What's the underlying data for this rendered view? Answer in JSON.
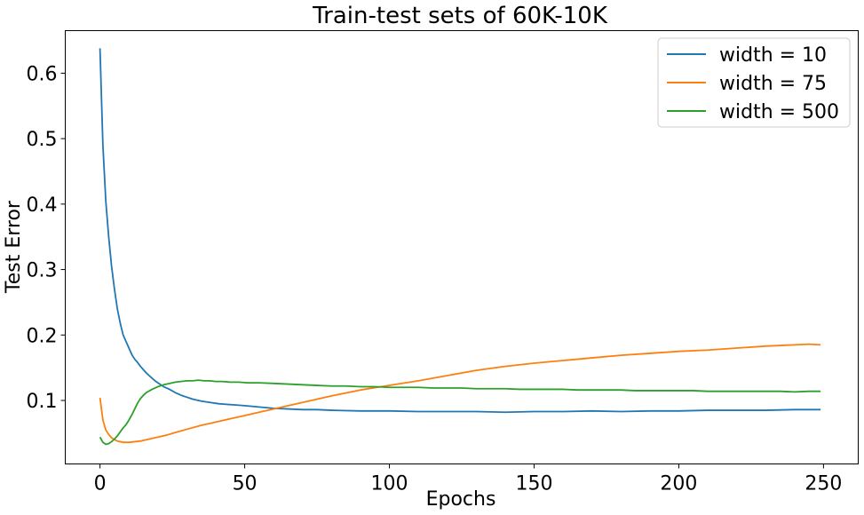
{
  "chart_data": {
    "type": "line",
    "title": "Train-test sets of 60K-10K",
    "xlabel": "Epochs",
    "ylabel": "Test Error",
    "xlim": [
      -12,
      262
    ],
    "ylim": [
      0.003,
      0.665
    ],
    "x_ticks": [
      0,
      50,
      100,
      150,
      200,
      250
    ],
    "y_ticks": [
      0.1,
      0.2,
      0.3,
      0.4,
      0.5,
      0.6
    ],
    "grid": false,
    "legend_position": "top-right",
    "series": [
      {
        "name": "width = 10",
        "color": "#1f77b4",
        "x": [
          0,
          1,
          2,
          3,
          4,
          5,
          6,
          7,
          8,
          9,
          10,
          11,
          12,
          13,
          14,
          15,
          16,
          17,
          18,
          19,
          20,
          22,
          24,
          26,
          28,
          30,
          32,
          35,
          38,
          41,
          44,
          47,
          50,
          55,
          60,
          65,
          70,
          75,
          80,
          90,
          100,
          110,
          120,
          130,
          140,
          150,
          160,
          170,
          180,
          190,
          200,
          210,
          220,
          230,
          240,
          249
        ],
        "y": [
          0.638,
          0.49,
          0.405,
          0.35,
          0.305,
          0.27,
          0.24,
          0.218,
          0.2,
          0.19,
          0.18,
          0.17,
          0.163,
          0.158,
          0.152,
          0.147,
          0.142,
          0.138,
          0.134,
          0.13,
          0.127,
          0.121,
          0.117,
          0.112,
          0.108,
          0.105,
          0.102,
          0.099,
          0.097,
          0.095,
          0.094,
          0.093,
          0.092,
          0.09,
          0.088,
          0.087,
          0.086,
          0.086,
          0.085,
          0.084,
          0.084,
          0.083,
          0.083,
          0.083,
          0.082,
          0.083,
          0.083,
          0.084,
          0.083,
          0.084,
          0.084,
          0.085,
          0.085,
          0.085,
          0.086,
          0.086
        ]
      },
      {
        "name": "width = 75",
        "color": "#ff7f0e",
        "x": [
          0,
          1,
          2,
          3,
          4,
          5,
          6,
          7,
          8,
          9,
          10,
          12,
          14,
          16,
          18,
          20,
          23,
          26,
          30,
          35,
          40,
          45,
          50,
          55,
          60,
          65,
          70,
          80,
          90,
          100,
          110,
          120,
          130,
          140,
          150,
          160,
          170,
          180,
          190,
          200,
          210,
          220,
          230,
          240,
          245,
          249
        ],
        "y": [
          0.104,
          0.07,
          0.055,
          0.048,
          0.043,
          0.04,
          0.038,
          0.037,
          0.036,
          0.036,
          0.036,
          0.037,
          0.038,
          0.04,
          0.042,
          0.044,
          0.047,
          0.051,
          0.056,
          0.062,
          0.067,
          0.072,
          0.077,
          0.082,
          0.087,
          0.092,
          0.097,
          0.107,
          0.116,
          0.123,
          0.13,
          0.138,
          0.146,
          0.152,
          0.157,
          0.161,
          0.165,
          0.169,
          0.172,
          0.175,
          0.177,
          0.18,
          0.183,
          0.185,
          0.186,
          0.185
        ]
      },
      {
        "name": "width = 500",
        "color": "#2ca02c",
        "x": [
          0,
          1,
          2,
          3,
          4,
          5,
          6,
          7,
          8,
          9,
          10,
          11,
          12,
          13,
          14,
          15,
          16,
          18,
          20,
          22,
          24,
          26,
          28,
          30,
          32,
          34,
          36,
          38,
          40,
          42,
          45,
          48,
          51,
          55,
          60,
          65,
          70,
          75,
          80,
          85,
          90,
          95,
          100,
          105,
          110,
          115,
          120,
          125,
          130,
          135,
          140,
          145,
          150,
          155,
          160,
          165,
          170,
          175,
          180,
          185,
          190,
          195,
          200,
          205,
          210,
          215,
          220,
          225,
          230,
          235,
          240,
          245,
          249
        ],
        "y": [
          0.044,
          0.036,
          0.033,
          0.034,
          0.037,
          0.041,
          0.046,
          0.052,
          0.058,
          0.063,
          0.07,
          0.078,
          0.087,
          0.096,
          0.103,
          0.108,
          0.112,
          0.117,
          0.121,
          0.124,
          0.126,
          0.128,
          0.129,
          0.13,
          0.13,
          0.131,
          0.13,
          0.13,
          0.129,
          0.129,
          0.128,
          0.128,
          0.127,
          0.127,
          0.126,
          0.125,
          0.124,
          0.123,
          0.122,
          0.122,
          0.121,
          0.121,
          0.12,
          0.12,
          0.12,
          0.119,
          0.119,
          0.119,
          0.118,
          0.118,
          0.118,
          0.117,
          0.117,
          0.117,
          0.117,
          0.116,
          0.116,
          0.116,
          0.116,
          0.115,
          0.115,
          0.115,
          0.115,
          0.115,
          0.114,
          0.114,
          0.114,
          0.114,
          0.114,
          0.114,
          0.113,
          0.114,
          0.114
        ]
      }
    ]
  }
}
